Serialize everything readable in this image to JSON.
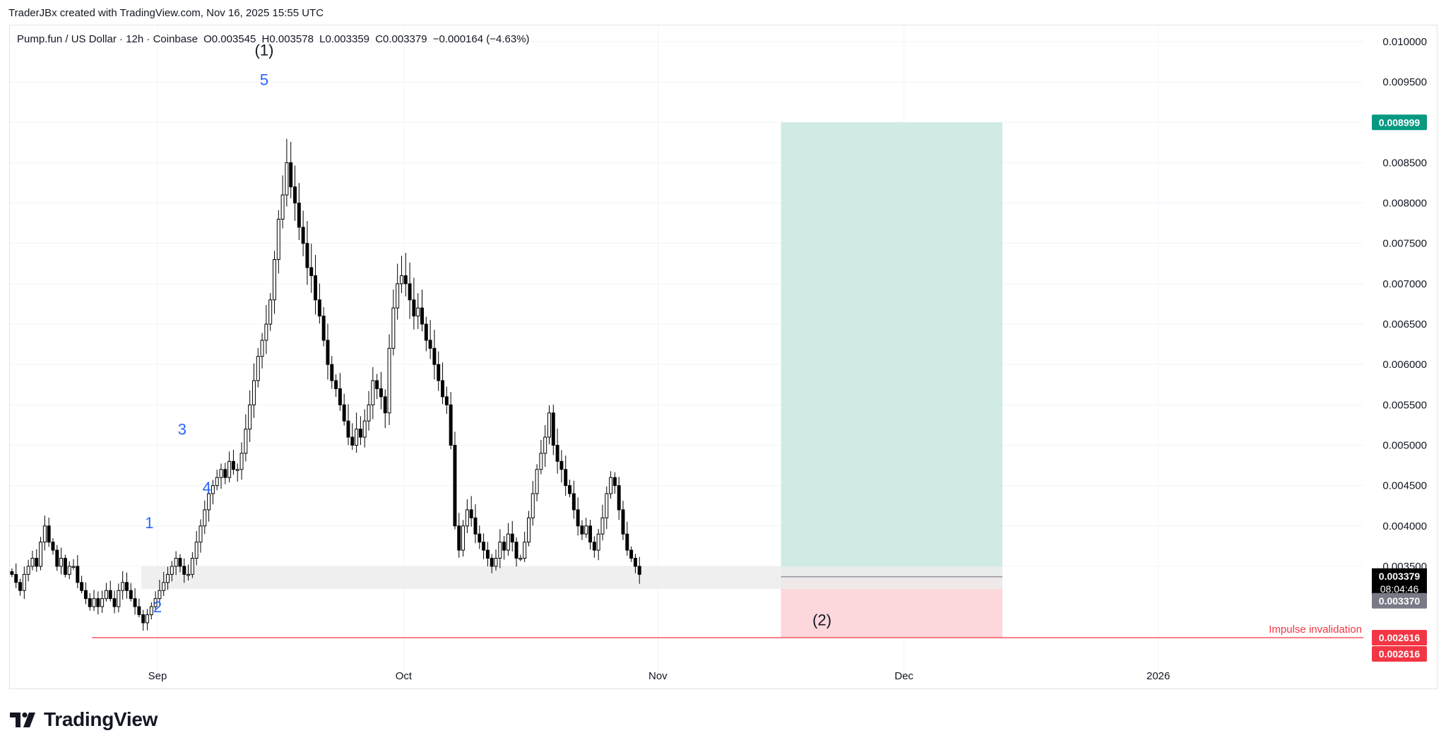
{
  "header": {
    "credit": "TraderJBx created with TradingView.com, Nov 16, 2025 15:55 UTC"
  },
  "legend": {
    "symbol": "Pump.fun / US Dollar · 12h · Coinbase",
    "open": "O0.003545",
    "high": "H0.003578",
    "low": "L0.003359",
    "close": "C0.003379",
    "change": "−0.000164 (−4.63%)"
  },
  "footer": {
    "brand": "TradingView"
  },
  "colors": {
    "grid": "#f0f3fa",
    "candle": "#000000",
    "candle_up_fill": "#ffffff",
    "wave_blue": "#2962ff",
    "target_zone": "#cfebe4",
    "stop_zone": "#fcd7dc",
    "support_zone": "#ececec",
    "invalidation": "#f23645",
    "target_badge": "#089981",
    "last_price_badge": "#000000",
    "entry_badge": "#787b86"
  },
  "chart_data": {
    "type": "candlestick",
    "symbol": "Pump.fun / US Dollar",
    "interval": "12h",
    "exchange": "Coinbase",
    "y_axis": {
      "side": "right",
      "range": [
        0.0021,
        0.0102
      ],
      "ticks": [
        "0.010000",
        "0.009500",
        "0.009000",
        "0.008500",
        "0.008000",
        "0.007500",
        "0.007000",
        "0.006500",
        "0.006000",
        "0.005500",
        "0.005000",
        "0.004500",
        "0.004000",
        "0.003500"
      ],
      "tick_values": [
        0.01,
        0.0095,
        0.009,
        0.0085,
        0.008,
        0.0075,
        0.007,
        0.0065,
        0.006,
        0.0055,
        0.005,
        0.0045,
        0.004,
        0.0035
      ]
    },
    "x_axis": {
      "range": [
        "2025-08-14",
        "2026-01-26"
      ],
      "ticks": [
        {
          "label": "Sep",
          "date": "2025-09-01"
        },
        {
          "label": "Oct",
          "date": "2025-10-01"
        },
        {
          "label": "Nov",
          "date": "2025-11-01"
        },
        {
          "label": "Dec",
          "date": "2025-12-01"
        },
        {
          "label": "2026",
          "date": "2026-01-01"
        }
      ]
    },
    "grid": true,
    "closes_start": "2025-08-14",
    "closes_interval": "12h",
    "closes": [
      0.0034,
      0.0033,
      0.0032,
      0.0034,
      0.0035,
      0.0036,
      0.0035,
      0.0038,
      0.004,
      0.0038,
      0.0037,
      0.0035,
      0.0036,
      0.0034,
      0.0035,
      0.0035,
      0.0033,
      0.0032,
      0.0031,
      0.003,
      0.0031,
      0.003,
      0.0031,
      0.0032,
      0.0031,
      0.003,
      0.0032,
      0.0033,
      0.0032,
      0.0031,
      0.003,
      0.0029,
      0.0028,
      0.0029,
      0.003,
      0.0031,
      0.0032,
      0.0033,
      0.0034,
      0.0035,
      0.0036,
      0.0035,
      0.0034,
      0.0034,
      0.0036,
      0.0038,
      0.004,
      0.0042,
      0.0044,
      0.0045,
      0.0046,
      0.0047,
      0.0046,
      0.0048,
      0.0047,
      0.0047,
      0.0049,
      0.0052,
      0.0055,
      0.0058,
      0.0061,
      0.0063,
      0.0065,
      0.0068,
      0.0073,
      0.0078,
      0.0081,
      0.0085,
      0.0082,
      0.008,
      0.0077,
      0.0075,
      0.0072,
      0.0071,
      0.0068,
      0.0066,
      0.0063,
      0.006,
      0.0058,
      0.0057,
      0.0055,
      0.0053,
      0.0051,
      0.005,
      0.0052,
      0.0051,
      0.0053,
      0.0055,
      0.0058,
      0.0057,
      0.0056,
      0.0054,
      0.0062,
      0.0067,
      0.007,
      0.0071,
      0.007,
      0.0068,
      0.0066,
      0.0067,
      0.0065,
      0.0063,
      0.0062,
      0.006,
      0.0058,
      0.0056,
      0.0055,
      0.005,
      0.004,
      0.0037,
      0.004,
      0.0042,
      0.0041,
      0.0039,
      0.0038,
      0.0037,
      0.0036,
      0.0035,
      0.0036,
      0.0038,
      0.0037,
      0.0039,
      0.0038,
      0.0036,
      0.0036,
      0.0038,
      0.0041,
      0.0044,
      0.0047,
      0.0049,
      0.0051,
      0.0054,
      0.005,
      0.0048,
      0.0047,
      0.0045,
      0.0044,
      0.0042,
      0.004,
      0.0039,
      0.004,
      0.0038,
      0.0037,
      0.0039,
      0.0041,
      0.0044,
      0.0046,
      0.0045,
      0.0042,
      0.0039,
      0.0037,
      0.0036,
      0.0035,
      0.0034
    ],
    "waves": [
      {
        "label": "1",
        "date": "2025-08-31",
        "price": 0.00397,
        "color": "blue"
      },
      {
        "label": "2",
        "date": "2025-09-01",
        "price": 0.00293,
        "color": "blue"
      },
      {
        "label": "3",
        "date": "2025-09-04",
        "price": 0.00513,
        "color": "blue"
      },
      {
        "label": "4",
        "date": "2025-09-07",
        "price": 0.00441,
        "color": "blue"
      },
      {
        "label": "5",
        "date": "2025-09-14",
        "price": 0.00946,
        "color": "blue"
      },
      {
        "label": "(1)",
        "date": "2025-09-14",
        "price": 0.00983,
        "color": "black"
      },
      {
        "label": "(2)",
        "date": "2025-11-21",
        "price": 0.00277,
        "color": "black"
      }
    ],
    "support_zone": {
      "from": "2025-08-30",
      "to": "2025-11-16",
      "top": 0.0035,
      "bottom": 0.00322
    },
    "position": {
      "type": "long",
      "start": "2025-11-16",
      "end": "2025-12-13",
      "entry": 0.00337,
      "target": 0.008999,
      "stop": 0.002616
    },
    "invalidation_line": {
      "price": 0.002616,
      "from": "2025-08-24",
      "label": "Impulse invalidation"
    },
    "price_badges": [
      {
        "text": "0.008999",
        "price": 0.008999,
        "kind": "target"
      },
      {
        "text": "0.003379",
        "sub": "08:04:46",
        "price": 0.003379,
        "kind": "last"
      },
      {
        "text": "0.003370",
        "price": 0.00337,
        "kind": "entry"
      },
      {
        "text": "0.002616",
        "price": 0.002616,
        "kind": "stop"
      },
      {
        "text": "0.002616",
        "price": 0.002616,
        "kind": "stop"
      }
    ]
  }
}
